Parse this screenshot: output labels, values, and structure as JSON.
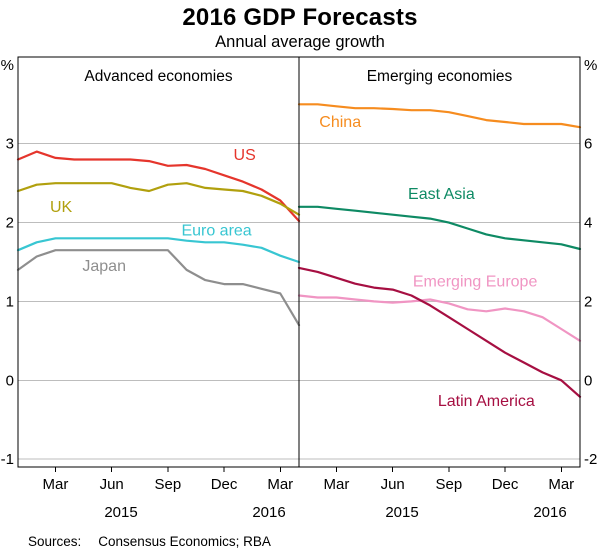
{
  "header": {
    "title": "2016 GDP Forecasts",
    "subtitle": "Annual average growth"
  },
  "footer": {
    "sources_label": "Sources:",
    "sources_text": "Consensus Economics; RBA"
  },
  "chart_data": {
    "type": "line",
    "title": "2016 GDP Forecasts",
    "subtitle": "Annual average growth",
    "x_months": [
      "Jan 2015",
      "Feb 2015",
      "Mar 2015",
      "Apr 2015",
      "May 2015",
      "Jun 2015",
      "Jul 2015",
      "Aug 2015",
      "Sep 2015",
      "Oct 2015",
      "Nov 2015",
      "Dec 2015",
      "Jan 2016",
      "Feb 2016",
      "Mar 2016",
      "Apr 2016"
    ],
    "x_tick_indices": [
      2,
      5,
      8,
      11,
      14
    ],
    "x_tick_labels": [
      "Mar",
      "Jun",
      "Sep",
      "Dec",
      "Mar"
    ],
    "year_labels": [
      {
        "text": "2015",
        "index": 5.5
      },
      {
        "text": "2016",
        "index": 13.4
      }
    ],
    "grid_on": true,
    "grid_color": "#bdbdbd",
    "axis_color": "#000000",
    "panels": [
      {
        "title": "Advanced economies",
        "side": "left",
        "axis_unit": "%",
        "axis_unit_value": 4,
        "ylim": [
          -1.1,
          4.1
        ],
        "yticks": [
          3,
          2,
          1,
          0,
          -1
        ],
        "ytick_labels": [
          "3",
          "2",
          "1",
          "0",
          "-1"
        ],
        "series": [
          {
            "name": "US",
            "color": "#e5352c",
            "values": [
              2.8,
              2.9,
              2.82,
              2.8,
              2.8,
              2.8,
              2.8,
              2.78,
              2.72,
              2.73,
              2.68,
              2.6,
              2.52,
              2.42,
              2.28,
              2.02
            ],
            "label_at": [
              12.1,
              2.86
            ]
          },
          {
            "name": "UK",
            "color": "#b1a00e",
            "values": [
              2.4,
              2.48,
              2.5,
              2.5,
              2.5,
              2.5,
              2.44,
              2.4,
              2.48,
              2.5,
              2.44,
              2.42,
              2.4,
              2.34,
              2.24,
              2.1
            ],
            "label_at": [
              2.3,
              2.2
            ]
          },
          {
            "name": "Euro area",
            "color": "#38c6d2",
            "values": [
              1.65,
              1.75,
              1.8,
              1.8,
              1.8,
              1.8,
              1.8,
              1.8,
              1.8,
              1.77,
              1.75,
              1.75,
              1.72,
              1.68,
              1.58,
              1.5
            ],
            "label_at": [
              10.6,
              1.9
            ]
          },
          {
            "name": "Japan",
            "color": "#8e8e8e",
            "values": [
              1.4,
              1.57,
              1.65,
              1.65,
              1.65,
              1.65,
              1.65,
              1.65,
              1.65,
              1.4,
              1.27,
              1.22,
              1.22,
              1.16,
              1.1,
              0.7
            ],
            "label_at": [
              4.6,
              1.45
            ]
          }
        ]
      },
      {
        "title": "Emerging economies",
        "side": "right",
        "axis_unit": "%",
        "axis_unit_value": 8,
        "ylim": [
          -2.2,
          8.2
        ],
        "yticks": [
          6,
          4,
          2,
          0,
          -2
        ],
        "ytick_labels": [
          "6",
          "4",
          "2",
          "0",
          "-2"
        ],
        "series": [
          {
            "name": "China",
            "color": "#f68c1f",
            "values": [
              7.0,
              7.0,
              6.95,
              6.9,
              6.9,
              6.88,
              6.85,
              6.85,
              6.8,
              6.7,
              6.6,
              6.55,
              6.5,
              6.5,
              6.5,
              6.42
            ],
            "label_at": [
              2.2,
              6.55
            ]
          },
          {
            "name": "East Asia",
            "color": "#0e8a64",
            "values": [
              4.4,
              4.4,
              4.35,
              4.3,
              4.25,
              4.2,
              4.15,
              4.1,
              4.0,
              3.85,
              3.7,
              3.6,
              3.55,
              3.5,
              3.45,
              3.33
            ],
            "label_at": [
              7.6,
              4.72
            ]
          },
          {
            "name": "Emerging Europe",
            "color": "#f095c3",
            "values": [
              2.15,
              2.1,
              2.1,
              2.05,
              2.0,
              1.97,
              2.0,
              2.05,
              1.95,
              1.8,
              1.75,
              1.82,
              1.75,
              1.6,
              1.3,
              1.0
            ],
            "label_at": [
              9.4,
              2.5
            ]
          },
          {
            "name": "Latin America",
            "color": "#a60f42",
            "values": [
              2.85,
              2.75,
              2.6,
              2.45,
              2.35,
              2.3,
              2.15,
              1.9,
              1.6,
              1.3,
              1.0,
              0.7,
              0.45,
              0.2,
              0.0,
              -0.42
            ],
            "label_at": [
              10.0,
              -0.52
            ]
          }
        ]
      }
    ]
  }
}
